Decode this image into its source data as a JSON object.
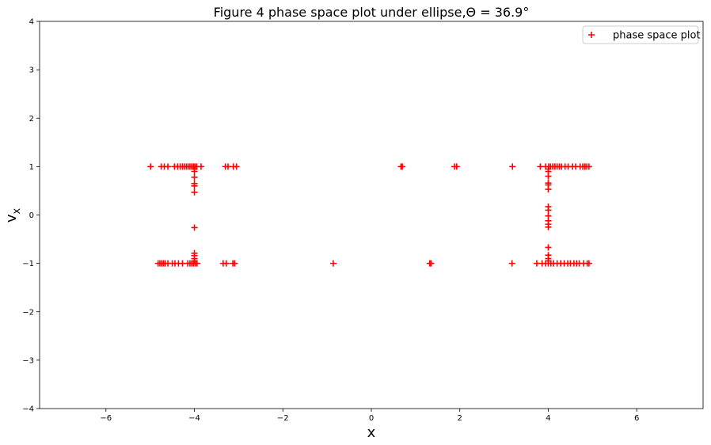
{
  "chart_data": {
    "type": "scatter",
    "title": "Figure 4 phase space plot under ellipse,Θ = 36.9°",
    "xlabel": "x",
    "ylabel": "v",
    "ylabel_subscript": "x",
    "xlim": [
      -7.5,
      7.5
    ],
    "ylim": [
      -4,
      4
    ],
    "xticks": [
      -6,
      -4,
      -2,
      0,
      2,
      4,
      6
    ],
    "xtick_labels": [
      "−6",
      "−4",
      "−2",
      "0",
      "2",
      "4",
      "6"
    ],
    "yticks": [
      -4,
      -3,
      -2,
      -1,
      0,
      1,
      2,
      3,
      4
    ],
    "ytick_labels": [
      "−4",
      "−3",
      "−2",
      "−1",
      "0",
      "1",
      "2",
      "3",
      "4"
    ],
    "grid": false,
    "legend_position": "top-right",
    "marker": "+",
    "color": "#ff0000",
    "series": [
      {
        "name": "phase space plot",
        "points": [
          [
            -4.99,
            1
          ],
          [
            -4.75,
            1
          ],
          [
            -4.68,
            1
          ],
          [
            -4.6,
            1
          ],
          [
            -4.45,
            1
          ],
          [
            -4.38,
            1
          ],
          [
            -4.32,
            1
          ],
          [
            -4.27,
            1
          ],
          [
            -4.22,
            1
          ],
          [
            -4.18,
            1
          ],
          [
            -4.14,
            1
          ],
          [
            -4.1,
            1
          ],
          [
            -4.06,
            1
          ],
          [
            -4.02,
            1
          ],
          [
            -3.99,
            1
          ],
          [
            -3.95,
            1
          ],
          [
            -3.85,
            1
          ],
          [
            -3.3,
            1
          ],
          [
            -3.24,
            1
          ],
          [
            -3.12,
            1
          ],
          [
            -3.05,
            1
          ],
          [
            0.67,
            1
          ],
          [
            0.7,
            1
          ],
          [
            1.88,
            1
          ],
          [
            1.93,
            1
          ],
          [
            3.19,
            1
          ],
          [
            3.82,
            1
          ],
          [
            3.94,
            1
          ],
          [
            4.01,
            1
          ],
          [
            4.05,
            1
          ],
          [
            4.1,
            1
          ],
          [
            4.15,
            1
          ],
          [
            4.2,
            1
          ],
          [
            4.25,
            1
          ],
          [
            4.3,
            1
          ],
          [
            4.38,
            1
          ],
          [
            4.45,
            1
          ],
          [
            4.55,
            1
          ],
          [
            4.62,
            1
          ],
          [
            4.72,
            1
          ],
          [
            4.78,
            1
          ],
          [
            4.83,
            1
          ],
          [
            4.87,
            1
          ],
          [
            4.92,
            1
          ],
          [
            -4.0,
            0.95
          ],
          [
            -4.0,
            0.9
          ],
          [
            -4.0,
            0.78
          ],
          [
            -4.0,
            0.65
          ],
          [
            -4.0,
            0.6
          ],
          [
            -4.0,
            0.47
          ],
          [
            -4.0,
            -0.26
          ],
          [
            -4.0,
            -0.79
          ],
          [
            -4.0,
            -0.84
          ],
          [
            -4.0,
            -0.9
          ],
          [
            -4.0,
            -0.95
          ],
          [
            4.0,
            0.95
          ],
          [
            4.0,
            0.9
          ],
          [
            4.0,
            0.8
          ],
          [
            4.0,
            0.66
          ],
          [
            4.0,
            0.62
          ],
          [
            4.0,
            0.53
          ],
          [
            4.0,
            0.17
          ],
          [
            4.0,
            0.1
          ],
          [
            4.0,
            -0.02
          ],
          [
            4.0,
            -0.12
          ],
          [
            4.0,
            -0.19
          ],
          [
            4.0,
            -0.25
          ],
          [
            4.0,
            -0.67
          ],
          [
            4.0,
            -0.83
          ],
          [
            4.0,
            -0.9
          ],
          [
            4.0,
            -0.95
          ],
          [
            -4.82,
            -1
          ],
          [
            -4.78,
            -1
          ],
          [
            -4.74,
            -1
          ],
          [
            -4.7,
            -1
          ],
          [
            -4.66,
            -1
          ],
          [
            -4.6,
            -1
          ],
          [
            -4.5,
            -1
          ],
          [
            -4.44,
            -1
          ],
          [
            -4.36,
            -1
          ],
          [
            -4.27,
            -1
          ],
          [
            -4.15,
            -1
          ],
          [
            -4.1,
            -1
          ],
          [
            -4.06,
            -1
          ],
          [
            -4.02,
            -1
          ],
          [
            -3.98,
            -1
          ],
          [
            -3.94,
            -1
          ],
          [
            -3.35,
            -1
          ],
          [
            -3.28,
            -1
          ],
          [
            -3.13,
            -1
          ],
          [
            -3.09,
            -1
          ],
          [
            -0.86,
            -1
          ],
          [
            1.32,
            -1
          ],
          [
            1.35,
            -1
          ],
          [
            3.18,
            -1
          ],
          [
            3.74,
            -1
          ],
          [
            3.86,
            -1
          ],
          [
            3.94,
            -1
          ],
          [
            4.0,
            -1
          ],
          [
            4.06,
            -1
          ],
          [
            4.12,
            -1
          ],
          [
            4.2,
            -1
          ],
          [
            4.28,
            -1
          ],
          [
            4.36,
            -1
          ],
          [
            4.44,
            -1
          ],
          [
            4.5,
            -1
          ],
          [
            4.58,
            -1
          ],
          [
            4.64,
            -1
          ],
          [
            4.7,
            -1
          ],
          [
            4.8,
            -1
          ],
          [
            4.88,
            -1
          ],
          [
            4.92,
            -1
          ]
        ]
      }
    ]
  }
}
